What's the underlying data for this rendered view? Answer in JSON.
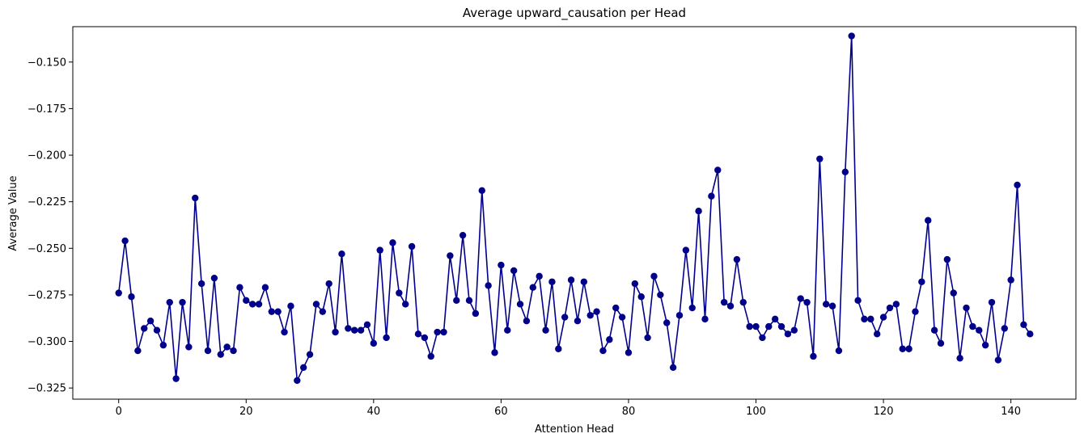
{
  "chart_data": {
    "type": "line",
    "title": "Average upward_causation per Head",
    "xlabel": "Attention Head",
    "ylabel": "Average Value",
    "xlim": [
      -7.2,
      150.2
    ],
    "ylim": [
      -0.331,
      -0.131
    ],
    "xticks": [
      0,
      20,
      40,
      60,
      80,
      100,
      120,
      140
    ],
    "xtick_labels": [
      "0",
      "20",
      "40",
      "60",
      "80",
      "100",
      "120",
      "140"
    ],
    "yticks": [
      -0.325,
      -0.3,
      -0.275,
      -0.25,
      -0.225,
      -0.2,
      -0.175,
      -0.15
    ],
    "ytick_labels": [
      "−0.325",
      "−0.300",
      "−0.275",
      "−0.250",
      "−0.225",
      "−0.200",
      "−0.175",
      "−0.150"
    ],
    "grid": false,
    "colors": {
      "line": "#00008b",
      "marker": "#00008b"
    },
    "series": [
      {
        "x": [
          0,
          1,
          2,
          3,
          4,
          5,
          6,
          7,
          8,
          9,
          10,
          11,
          12,
          13,
          14,
          15,
          16,
          17,
          18,
          19,
          20,
          21,
          22,
          23,
          24,
          25,
          26,
          27,
          28,
          29,
          30,
          31,
          32,
          33,
          34,
          35,
          36,
          37,
          38,
          39,
          40,
          41,
          42,
          43,
          44,
          45,
          46,
          47,
          48,
          49,
          50,
          51,
          52,
          53,
          54,
          55,
          56,
          57,
          58,
          59,
          60,
          61,
          62,
          63,
          64,
          65,
          66,
          67,
          68,
          69,
          70,
          71,
          72,
          73,
          74,
          75,
          76,
          77,
          78,
          79,
          80,
          81,
          82,
          83,
          84,
          85,
          86,
          87,
          88,
          89,
          90,
          91,
          92,
          93,
          94,
          95,
          96,
          97,
          98,
          99,
          100,
          101,
          102,
          103,
          104,
          105,
          106,
          107,
          108,
          109,
          110,
          111,
          112,
          113,
          114,
          115,
          116,
          117,
          118,
          119,
          120,
          121,
          122,
          123,
          124,
          125,
          126,
          127,
          128,
          129,
          130,
          131,
          132,
          133,
          134,
          135,
          136,
          137,
          138,
          139,
          140,
          141,
          142,
          143
        ],
        "values": [
          -0.274,
          -0.246,
          -0.276,
          -0.305,
          -0.293,
          -0.289,
          -0.294,
          -0.302,
          -0.279,
          -0.32,
          -0.279,
          -0.303,
          -0.223,
          -0.269,
          -0.305,
          -0.266,
          -0.307,
          -0.303,
          -0.305,
          -0.271,
          -0.278,
          -0.28,
          -0.28,
          -0.271,
          -0.284,
          -0.284,
          -0.295,
          -0.281,
          -0.321,
          -0.314,
          -0.307,
          -0.28,
          -0.284,
          -0.269,
          -0.295,
          -0.253,
          -0.293,
          -0.294,
          -0.294,
          -0.291,
          -0.301,
          -0.251,
          -0.298,
          -0.247,
          -0.274,
          -0.28,
          -0.249,
          -0.296,
          -0.298,
          -0.308,
          -0.295,
          -0.295,
          -0.254,
          -0.278,
          -0.243,
          -0.278,
          -0.285,
          -0.219,
          -0.27,
          -0.306,
          -0.259,
          -0.294,
          -0.262,
          -0.28,
          -0.289,
          -0.271,
          -0.265,
          -0.294,
          -0.268,
          -0.304,
          -0.287,
          -0.267,
          -0.289,
          -0.268,
          -0.286,
          -0.284,
          -0.305,
          -0.299,
          -0.282,
          -0.287,
          -0.306,
          -0.269,
          -0.276,
          -0.298,
          -0.265,
          -0.275,
          -0.29,
          -0.314,
          -0.286,
          -0.251,
          -0.282,
          -0.23,
          -0.288,
          -0.222,
          -0.208,
          -0.279,
          -0.281,
          -0.256,
          -0.279,
          -0.292,
          -0.292,
          -0.298,
          -0.292,
          -0.288,
          -0.292,
          -0.296,
          -0.294,
          -0.277,
          -0.279,
          -0.308,
          -0.202,
          -0.28,
          -0.281,
          -0.305,
          -0.209,
          -0.136,
          -0.278,
          -0.288,
          -0.288,
          -0.296,
          -0.287,
          -0.282,
          -0.28,
          -0.304,
          -0.304,
          -0.284,
          -0.268,
          -0.235,
          -0.294,
          -0.301,
          -0.256,
          -0.274,
          -0.309,
          -0.282,
          -0.292,
          -0.294,
          -0.302,
          -0.279,
          -0.31,
          -0.293,
          -0.267,
          -0.216,
          -0.291,
          -0.296
        ]
      }
    ]
  }
}
